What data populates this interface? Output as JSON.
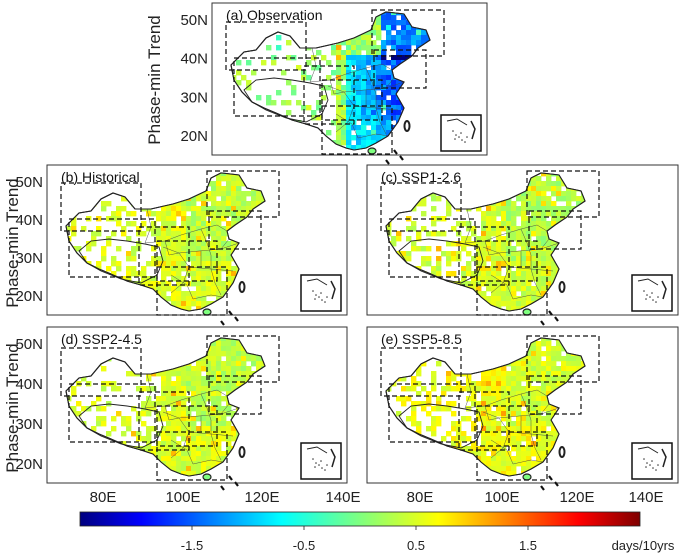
{
  "figure": {
    "y_axis_label": "Phase-min Trend",
    "lat_ticks": [
      "20N",
      "30N",
      "40N",
      "50N"
    ],
    "lon_ticks": [
      "80E",
      "100E",
      "120E",
      "140E"
    ],
    "panels": [
      {
        "id": "a",
        "title": "(a) Observation",
        "pattern": "obs"
      },
      {
        "id": "b",
        "title": "(b) Historical",
        "pattern": "hist"
      },
      {
        "id": "c",
        "title": "(c) SSP1-2.6",
        "pattern": "ssp126"
      },
      {
        "id": "d",
        "title": "(d) SSP2-4.5",
        "pattern": "ssp245"
      },
      {
        "id": "e",
        "title": "(e) SSP5-8.5",
        "pattern": "ssp585"
      }
    ]
  },
  "colorbar": {
    "min": -2.5,
    "max": 2.5,
    "ticks": [
      {
        "value": -1.5,
        "label": "-1.5"
      },
      {
        "value": -0.5,
        "label": "-0.5"
      },
      {
        "value": 0.5,
        "label": "0.5"
      },
      {
        "value": 1.5,
        "label": "1.5"
      }
    ],
    "unit": "days/10yrs",
    "colors": [
      "#00007f",
      "#0000ff",
      "#007fff",
      "#00ffff",
      "#7fff7f",
      "#ffff00",
      "#ff7f00",
      "#ff0000",
      "#7f0000"
    ]
  }
}
